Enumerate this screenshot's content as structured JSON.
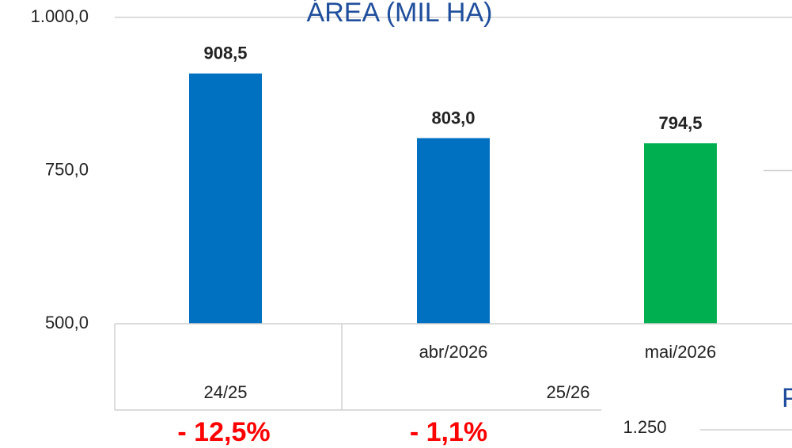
{
  "chart_data": {
    "type": "bar",
    "title": "ÁREA (MIL HA)",
    "categories": [
      null,
      "abr/2026",
      "mai/2026"
    ],
    "groups": [
      {
        "label": "24/25",
        "span": [
          0,
          0
        ]
      },
      {
        "label": "25/26",
        "span": [
          1,
          2
        ]
      }
    ],
    "values": [
      908.5,
      803.0,
      794.5
    ],
    "value_labels": [
      "908,5",
      "803,0",
      "794,5"
    ],
    "colors": [
      "#0070c0",
      "#0070c0",
      "#00b050"
    ],
    "ylim": [
      500,
      1000
    ],
    "yticks": [
      {
        "value": 500,
        "label": "500,0"
      },
      {
        "value": 750,
        "label": "750,0"
      },
      {
        "value": 1000,
        "label": "1.000,0"
      }
    ],
    "annotations": [
      "- 12,5%",
      "- 1,1%"
    ],
    "other_text": [
      "1.250",
      "P"
    ]
  }
}
